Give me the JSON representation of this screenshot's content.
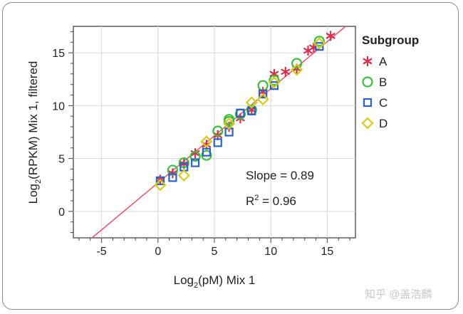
{
  "chart_data": {
    "type": "scatter",
    "xlabel": {
      "base": "Log",
      "sub": "2",
      "rest": "(pM) Mix 1"
    },
    "ylabel": {
      "base": "Log",
      "sub": "2",
      "rest": "(RPKM) Mix 1, filtered"
    },
    "xlim": [
      -7.5,
      17.5
    ],
    "ylim": [
      -2.5,
      17.5
    ],
    "xticks": [
      -5,
      0,
      5,
      10,
      15
    ],
    "yticks": [
      0,
      5,
      10,
      15
    ],
    "grid": true,
    "legend_position": "right",
    "legend_title": "Subgroup",
    "fit_line": {
      "slope": 0.89,
      "intercept": 2.7,
      "color": "#e05a6a"
    },
    "annotations": {
      "slope_text": "Slope = 0.89",
      "r2_base": "R",
      "r2_sup": "2",
      "r2_rest": " = 0.96"
    },
    "series": [
      {
        "name": "A",
        "marker": "asterisk",
        "color": "#d9304a",
        "points": [
          [
            0.2,
            3.0
          ],
          [
            1.3,
            3.6
          ],
          [
            2.3,
            4.5
          ],
          [
            3.3,
            5.5
          ],
          [
            4.3,
            6.3
          ],
          [
            5.3,
            7.2
          ],
          [
            6.3,
            8.0
          ],
          [
            7.3,
            8.8
          ],
          [
            8.3,
            9.6
          ],
          [
            9.3,
            11.3
          ],
          [
            10.3,
            13.0
          ],
          [
            11.3,
            13.2
          ],
          [
            12.3,
            13.5
          ],
          [
            13.3,
            15.2
          ],
          [
            13.8,
            15.5
          ],
          [
            15.3,
            16.6
          ]
        ]
      },
      {
        "name": "B",
        "marker": "circle",
        "color": "#3cbf3c",
        "points": [
          [
            1.3,
            3.9
          ],
          [
            2.3,
            4.6
          ],
          [
            3.3,
            5.2
          ],
          [
            4.3,
            5.3
          ],
          [
            5.3,
            7.6
          ],
          [
            6.3,
            8.5
          ],
          [
            6.3,
            8.7
          ],
          [
            7.3,
            9.2
          ],
          [
            8.3,
            9.6
          ],
          [
            9.3,
            11.9
          ],
          [
            10.3,
            12.4
          ],
          [
            12.3,
            14.0
          ],
          [
            14.3,
            16.1
          ]
        ]
      },
      {
        "name": "C",
        "marker": "square",
        "color": "#2a62c9",
        "points": [
          [
            0.2,
            2.9
          ],
          [
            1.3,
            3.2
          ],
          [
            2.3,
            4.2
          ],
          [
            3.3,
            4.6
          ],
          [
            4.3,
            5.6
          ],
          [
            5.3,
            6.5
          ],
          [
            6.3,
            7.5
          ],
          [
            7.3,
            9.3
          ],
          [
            8.3,
            9.5
          ],
          [
            9.3,
            11.1
          ],
          [
            10.3,
            11.9
          ],
          [
            14.3,
            15.6
          ]
        ]
      },
      {
        "name": "D",
        "marker": "diamond",
        "color": "#d4cc1c",
        "points": [
          [
            0.2,
            2.5
          ],
          [
            2.3,
            3.4
          ],
          [
            4.3,
            6.6
          ],
          [
            6.3,
            8.3
          ],
          [
            8.3,
            10.3
          ],
          [
            9.3,
            10.6
          ],
          [
            10.3,
            12.2
          ],
          [
            12.3,
            13.4
          ],
          [
            14.3,
            15.9
          ]
        ]
      }
    ]
  },
  "watermark": "知乎 @盖浩麟"
}
